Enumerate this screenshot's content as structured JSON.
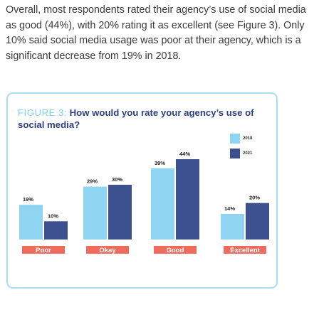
{
  "intro_text": "Overall, most respondents rated their agency’s use of social media as good (44%), with 20% rating it as excellent (see Figure 3). Only 10% said social media usage was poor at their agency, which is a significant decrease from 19% in 2018.",
  "figure": {
    "label": "FIGURE 3:",
    "title": "How would you rate your agency’s use of social media?"
  },
  "colors": {
    "series_2018": "#8fd4f1",
    "series_2021": "#3c4f8e",
    "category_badge": "#ef6b5d",
    "card_border": "#a9dcf3"
  },
  "chart_data": {
    "type": "bar",
    "categories": [
      "Poor",
      "Okay",
      "Good",
      "Excellent"
    ],
    "series": [
      {
        "name": "2018",
        "values": [
          19,
          29,
          39,
          14
        ]
      },
      {
        "name": "2021",
        "values": [
          10,
          30,
          44,
          20
        ]
      }
    ],
    "value_suffix": "%",
    "title": "How would you rate your agency’s use of social media?",
    "xlabel": "",
    "ylabel": "",
    "ylim": [
      0,
      50
    ],
    "grid": false,
    "legend_position": "top-right"
  }
}
